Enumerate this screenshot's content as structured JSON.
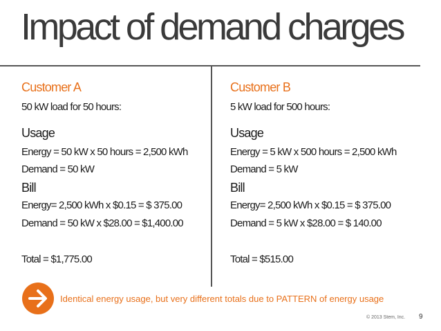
{
  "title": "Impact of demand charges",
  "customer_a": {
    "heading": "Customer  A",
    "load": "50 kW load for 50 hours:",
    "usage_heading": "Usage",
    "energy": "Energy = 50 kW x 50 hours = 2,500 kWh",
    "demand": "Demand = 50 kW",
    "bill_heading": "Bill",
    "bill_energy": "Energy= 2,500 kWh x  $0.15 =  $   375.00",
    "bill_demand": "Demand = 50 kW x $28.00 =   $1,400.00",
    "total": "Total = $1,775.00"
  },
  "customer_b": {
    "heading": "Customer B",
    "load": "5 kW load for 500 hours:",
    "usage_heading": "Usage",
    "energy": "Energy = 5 kW x 500 hours = 2,500 kWh",
    "demand": "Demand = 5 kW",
    "bill_heading": "Bill",
    "bill_energy": "Energy= 2,500 kWh x  $0.15 =  $ 375.00",
    "bill_demand": "Demand = 5 kW x $28.00 =       $  140.00",
    "total": "Total = $515.00"
  },
  "note": "Identical energy usage, but very different totals due to PATTERN of energy usage",
  "footer": {
    "copyright": "© 2013 Stem, Inc.",
    "page": "9"
  },
  "colors": {
    "accent": "#e8701a",
    "text": "#1a1a1a",
    "title": "#3a3a3a"
  },
  "icons": {
    "note_icon": "arrow-right-circle-icon"
  }
}
